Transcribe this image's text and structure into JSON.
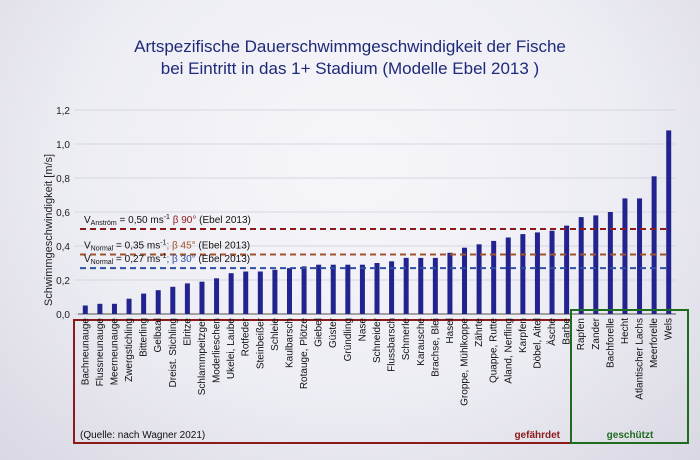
{
  "title_line1": "Artspezifische Dauerschwimmgeschwindigkeit der Fische",
  "title_line2": "bei Eintritt in das 1+ Stadium (Modelle Ebel 2013 )",
  "source_note": "(Quelle: nach Wagner 2021)",
  "group_labels": {
    "endangered": "gefährdet",
    "protected": "geschützt"
  },
  "colors": {
    "bars": "#23238f",
    "title": "#1e2a78",
    "line_anstroem": "#8b1a1a",
    "line_normal_45": "#a0522d",
    "line_normal_30": "#2e4fa3",
    "endangered_box": "#8b1a1a",
    "protected_box": "#1f6b1f"
  },
  "chart_data": {
    "type": "bar",
    "title": "Artspezifische Dauerschwimmgeschwindigkeit der Fische bei Eintritt in das 1+ Stadium (Modelle Ebel 2013 )",
    "ylabel": "Schwimmgeschwindigkeit [m/s]",
    "xlabel": "",
    "ylim": [
      0,
      1.2
    ],
    "yticks": [
      "0,0",
      "0,2",
      "0,4",
      "0,6",
      "0,8",
      "1,0",
      "1,2"
    ],
    "grid": true,
    "categories": [
      "Bachneunauge",
      "Flussneunauge",
      "Meerneunauge",
      "Zwergstichling",
      "Bitterling",
      "Gelbaal",
      "Dreist. Stichling",
      "Elritze",
      "Schlammpeitzger",
      "Moderlieschen",
      "Ukelei, Laube",
      "Rotfeder",
      "Steinbeißer",
      "Schleie",
      "Kaulbarsch",
      "Rotauge, Plötze",
      "Giebel",
      "Güster",
      "Gründling",
      "Nase",
      "Schneider",
      "Flussbarsch",
      "Schmerle",
      "Karausche",
      "Brachse, Blei",
      "Hasel",
      "Groppe, Mühlkoppe",
      "Zährte",
      "Quappe, Rutte",
      "Aland, Nerfling",
      "Karpfen",
      "Döbel, Aitel",
      "Äsche",
      "Barbe",
      "Rapfen",
      "Zander",
      "Bachforelle",
      "Hecht",
      "Atlantischer Lachs",
      "Meerforelle",
      "Wels"
    ],
    "values": [
      0.05,
      0.06,
      0.06,
      0.09,
      0.12,
      0.14,
      0.16,
      0.18,
      0.19,
      0.21,
      0.24,
      0.25,
      0.25,
      0.26,
      0.27,
      0.28,
      0.29,
      0.29,
      0.29,
      0.29,
      0.3,
      0.31,
      0.33,
      0.33,
      0.33,
      0.36,
      0.39,
      0.41,
      0.43,
      0.45,
      0.47,
      0.48,
      0.49,
      0.52,
      0.57,
      0.58,
      0.6,
      0.68,
      0.68,
      0.81,
      1.08
    ],
    "groups": [
      {
        "label": "gefährdet",
        "from": "Bachneunauge",
        "to": "Barbe"
      },
      {
        "label": "geschützt",
        "from": "Rapfen",
        "to": "Wels"
      }
    ],
    "reference_lines": [
      {
        "y": 0.5,
        "subscript": "Anström",
        "text_a": " = 0,50 ms",
        "text_b": " β 90°",
        "ref": "Ebel 2013",
        "color": "#8b1a1a"
      },
      {
        "y": 0.35,
        "subscript": "Normal",
        "text_a": " = 0,35 ms",
        "text_b": "; β 45°",
        "ref": "Ebel 2013",
        "color": "#a0522d"
      },
      {
        "y": 0.27,
        "subscript": "Normal",
        "text_a": " = 0,27 ms",
        "text_b": "; β 30°",
        "ref": "Ebel 2013",
        "color": "#2e4fa3"
      }
    ]
  }
}
